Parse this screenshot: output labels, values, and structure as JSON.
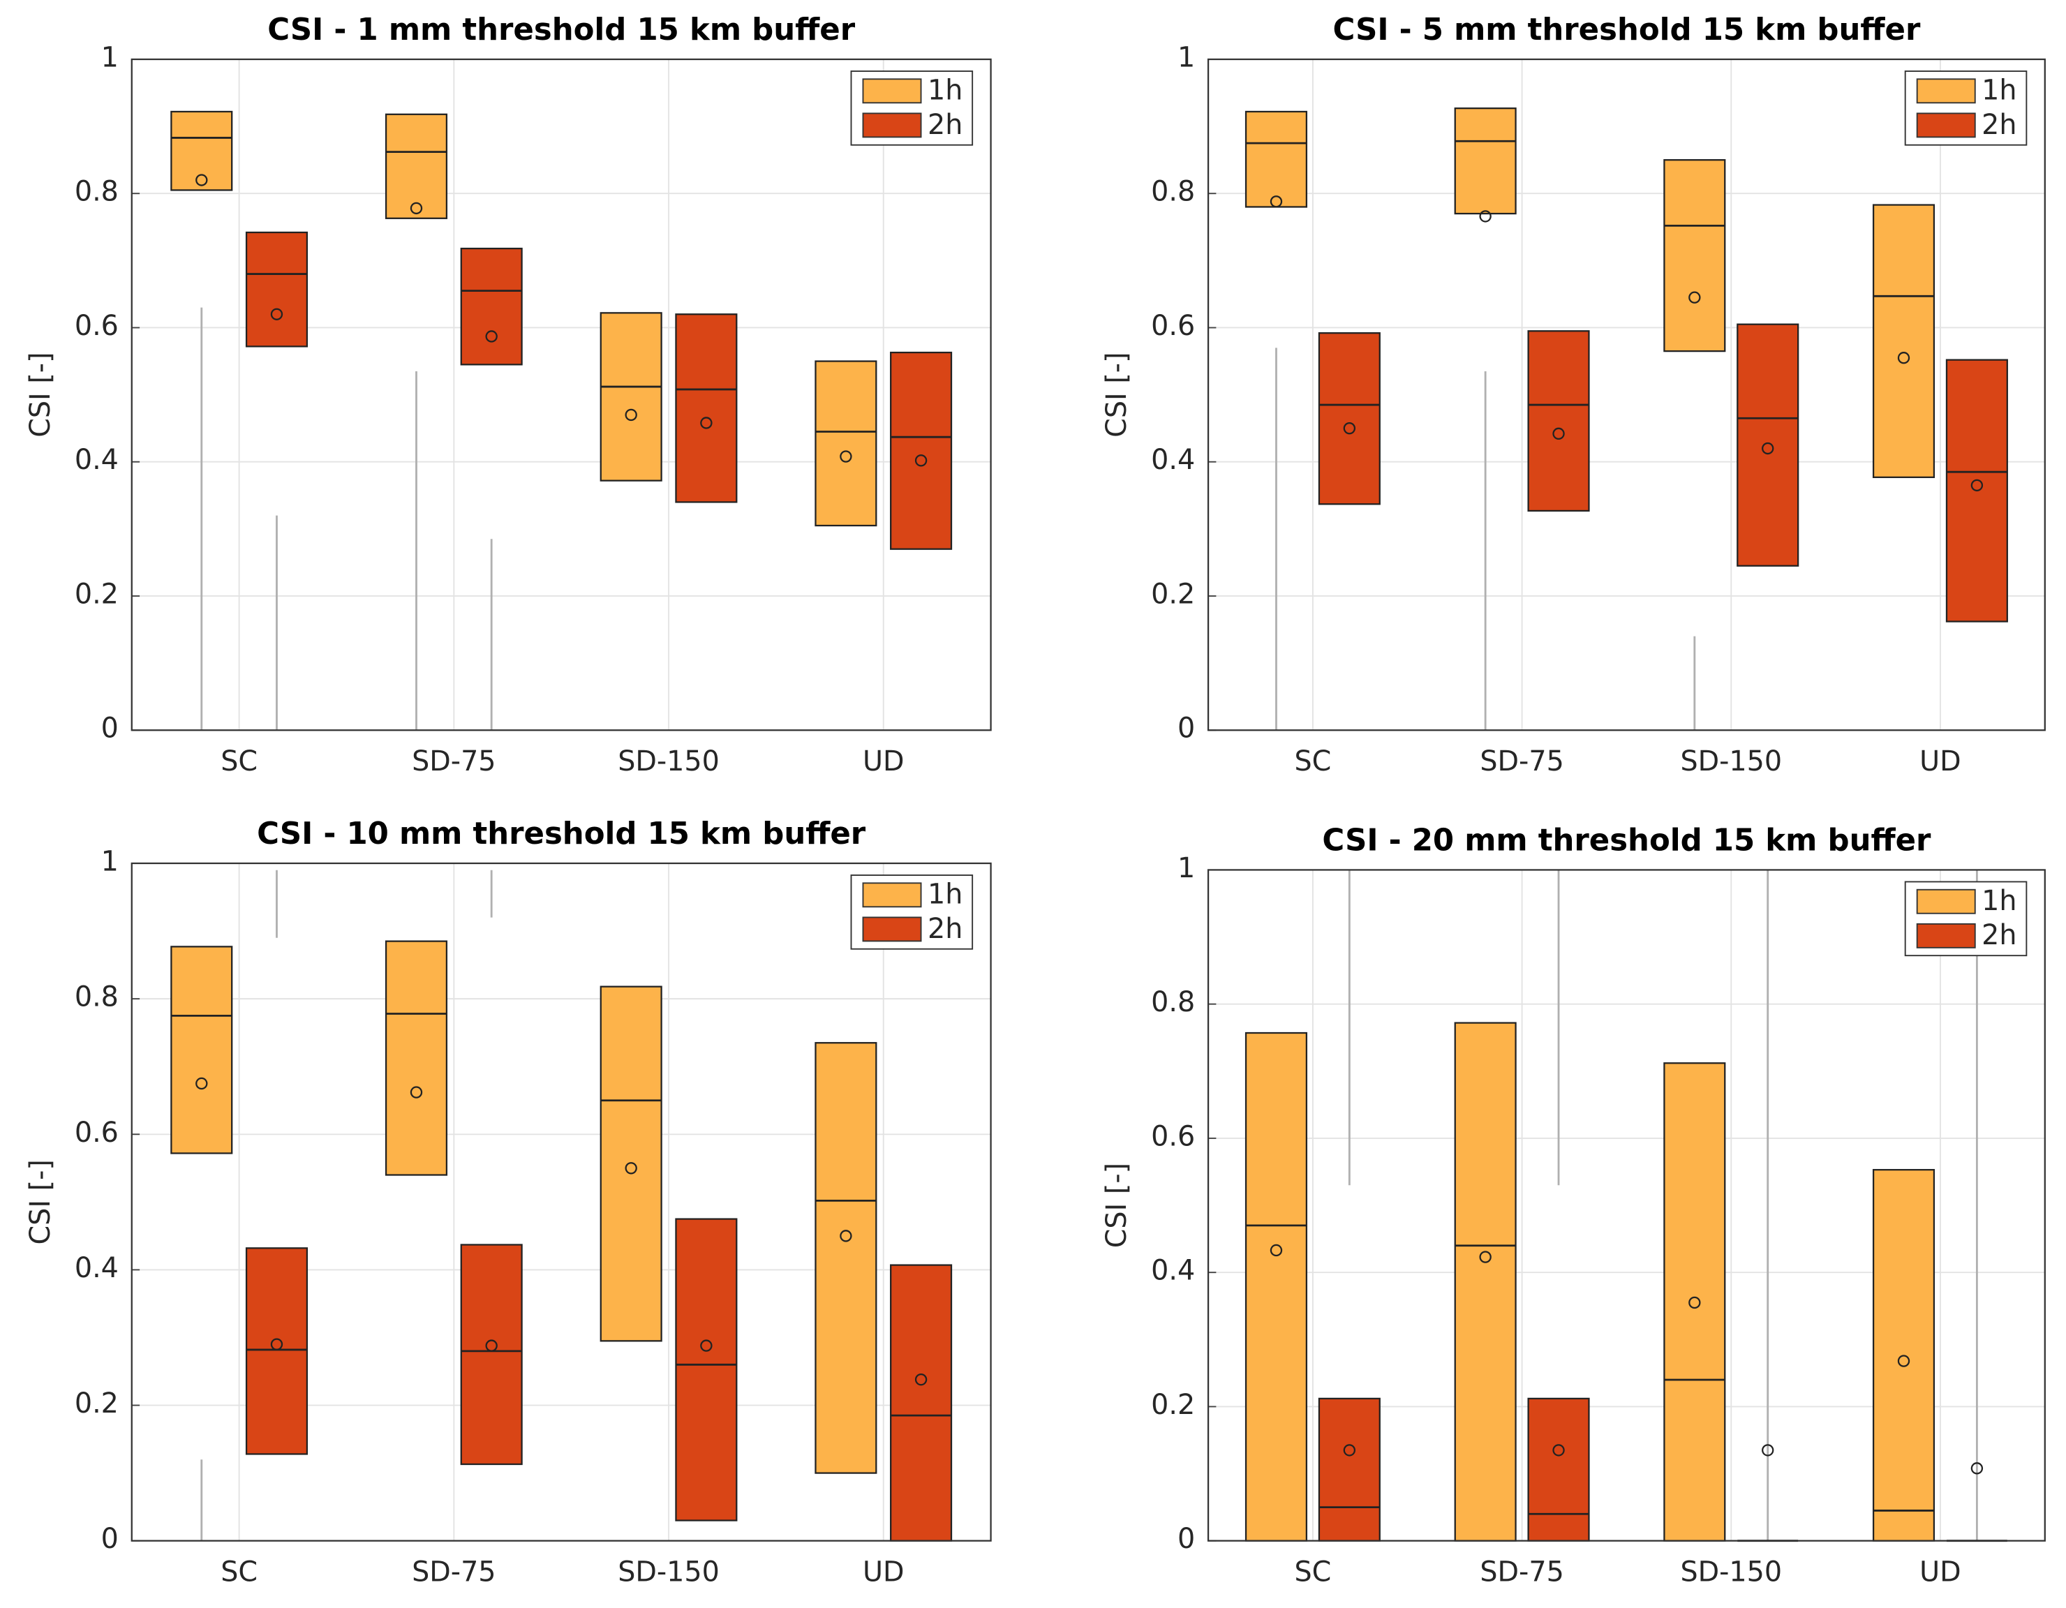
{
  "chart_data": [
    {
      "type": "box",
      "title": "CSI - 1 mm threshold 15 km buffer",
      "ylabel": "CSI [-]",
      "categories": [
        "SC",
        "SD-75",
        "SD-150",
        "UD"
      ],
      "ylim": [
        0,
        1
      ],
      "yticks": [
        0,
        0.2,
        0.4,
        0.6,
        0.8,
        1
      ],
      "grid": true,
      "legend": "upper right",
      "series": [
        {
          "name": "1h",
          "color": "#fdb34a",
          "q1": [
            0.805,
            0.763,
            0.372,
            0.305
          ],
          "median": [
            0.883,
            0.862,
            0.512,
            0.445
          ],
          "q3": [
            0.922,
            0.918,
            0.622,
            0.55
          ],
          "mean": [
            0.82,
            0.778,
            0.47,
            0.408
          ],
          "whisker_low": [
            0,
            0,
            null,
            null
          ],
          "whisker_high": [
            0.63,
            0.535,
            null,
            null
          ]
        },
        {
          "name": "2h",
          "color": "#d94516",
          "q1": [
            0.572,
            0.545,
            0.34,
            0.27
          ],
          "median": [
            0.68,
            0.655,
            0.508,
            0.437
          ],
          "q3": [
            0.742,
            0.718,
            0.62,
            0.563
          ],
          "mean": [
            0.62,
            0.587,
            0.458,
            0.402
          ],
          "whisker_low": [
            0,
            0,
            null,
            null
          ],
          "whisker_high": [
            0.32,
            0.285,
            null,
            null
          ]
        }
      ]
    },
    {
      "type": "box",
      "title": "CSI - 5 mm threshold 15 km buffer",
      "ylabel": "CSI [-]",
      "categories": [
        "SC",
        "SD-75",
        "SD-150",
        "UD"
      ],
      "ylim": [
        0,
        1
      ],
      "yticks": [
        0,
        0.2,
        0.4,
        0.6,
        0.8,
        1
      ],
      "grid": true,
      "legend": "upper right",
      "series": [
        {
          "name": "1h",
          "color": "#fdb34a",
          "q1": [
            0.78,
            0.77,
            0.565,
            0.377
          ],
          "median": [
            0.875,
            0.878,
            0.752,
            0.647
          ],
          "q3": [
            0.922,
            0.927,
            0.85,
            0.783
          ],
          "mean": [
            0.788,
            0.766,
            0.645,
            0.555
          ],
          "whisker_low": [
            0,
            0,
            0,
            null
          ],
          "whisker_high": [
            0.57,
            0.535,
            0.14,
            null
          ]
        },
        {
          "name": "2h",
          "color": "#d94516",
          "q1": [
            0.337,
            0.327,
            0.245,
            0.162
          ],
          "median": [
            0.485,
            0.485,
            0.465,
            0.385
          ],
          "q3": [
            0.592,
            0.595,
            0.605,
            0.552
          ],
          "mean": [
            0.45,
            0.442,
            0.42,
            0.365
          ],
          "whisker_low": [
            null,
            null,
            null,
            null
          ],
          "whisker_high": [
            null,
            null,
            null,
            null
          ]
        }
      ]
    },
    {
      "type": "box",
      "title": "CSI - 10 mm threshold 15 km buffer",
      "ylabel": "CSI [-]",
      "categories": [
        "SC",
        "SD-75",
        "SD-150",
        "UD"
      ],
      "ylim": [
        0,
        1
      ],
      "yticks": [
        0,
        0.2,
        0.4,
        0.6,
        0.8,
        1
      ],
      "grid": true,
      "legend": "upper right",
      "series": [
        {
          "name": "1h",
          "color": "#fdb34a",
          "q1": [
            0.572,
            0.54,
            0.295,
            0.1
          ],
          "median": [
            0.775,
            0.778,
            0.65,
            0.502
          ],
          "q3": [
            0.877,
            0.885,
            0.818,
            0.735
          ],
          "mean": [
            0.675,
            0.662,
            0.55,
            0.45
          ],
          "whisker_low": [
            0,
            null,
            null,
            null
          ],
          "whisker_high": [
            0.12,
            null,
            null,
            null
          ]
        },
        {
          "name": "2h",
          "color": "#d94516",
          "q1": [
            0.128,
            0.113,
            0.03,
            0
          ],
          "median": [
            0.282,
            0.28,
            0.26,
            0.185
          ],
          "q3": [
            0.432,
            0.437,
            0.475,
            0.407
          ],
          "mean": [
            0.29,
            0.288,
            0.288,
            0.238
          ],
          "whisker_low": [
            0.89,
            0.92,
            null,
            null
          ],
          "whisker_high": [
            0.99,
            0.99,
            null,
            null
          ]
        }
      ]
    },
    {
      "type": "box",
      "title": "CSI - 20 mm threshold 15 km buffer",
      "ylabel": "CSI [-]",
      "categories": [
        "SC",
        "SD-75",
        "SD-150",
        "UD"
      ],
      "ylim": [
        0,
        1
      ],
      "yticks": [
        0,
        0.2,
        0.4,
        0.6,
        0.8,
        1
      ],
      "grid": true,
      "legend": "upper right",
      "series": [
        {
          "name": "1h",
          "color": "#fdb34a",
          "q1": [
            0,
            0,
            0,
            0
          ],
          "median": [
            0.47,
            0.44,
            0.24,
            0.045
          ],
          "q3": [
            0.757,
            0.772,
            0.712,
            0.553
          ],
          "mean": [
            0.433,
            0.423,
            0.355,
            0.268
          ],
          "whisker_low": [
            null,
            null,
            null,
            null
          ],
          "whisker_high": [
            null,
            null,
            null,
            null
          ]
        },
        {
          "name": "2h",
          "color": "#d94516",
          "q1": [
            0,
            0,
            0,
            0
          ],
          "median": [
            0.05,
            0.04,
            0,
            0
          ],
          "q3": [
            0.212,
            0.212,
            0,
            0
          ],
          "mean": [
            0.135,
            0.135,
            0.135,
            0.108
          ],
          "whisker_low": [
            0.53,
            0.53,
            0,
            0
          ],
          "whisker_high": [
            1,
            1,
            1,
            1
          ]
        }
      ]
    }
  ]
}
